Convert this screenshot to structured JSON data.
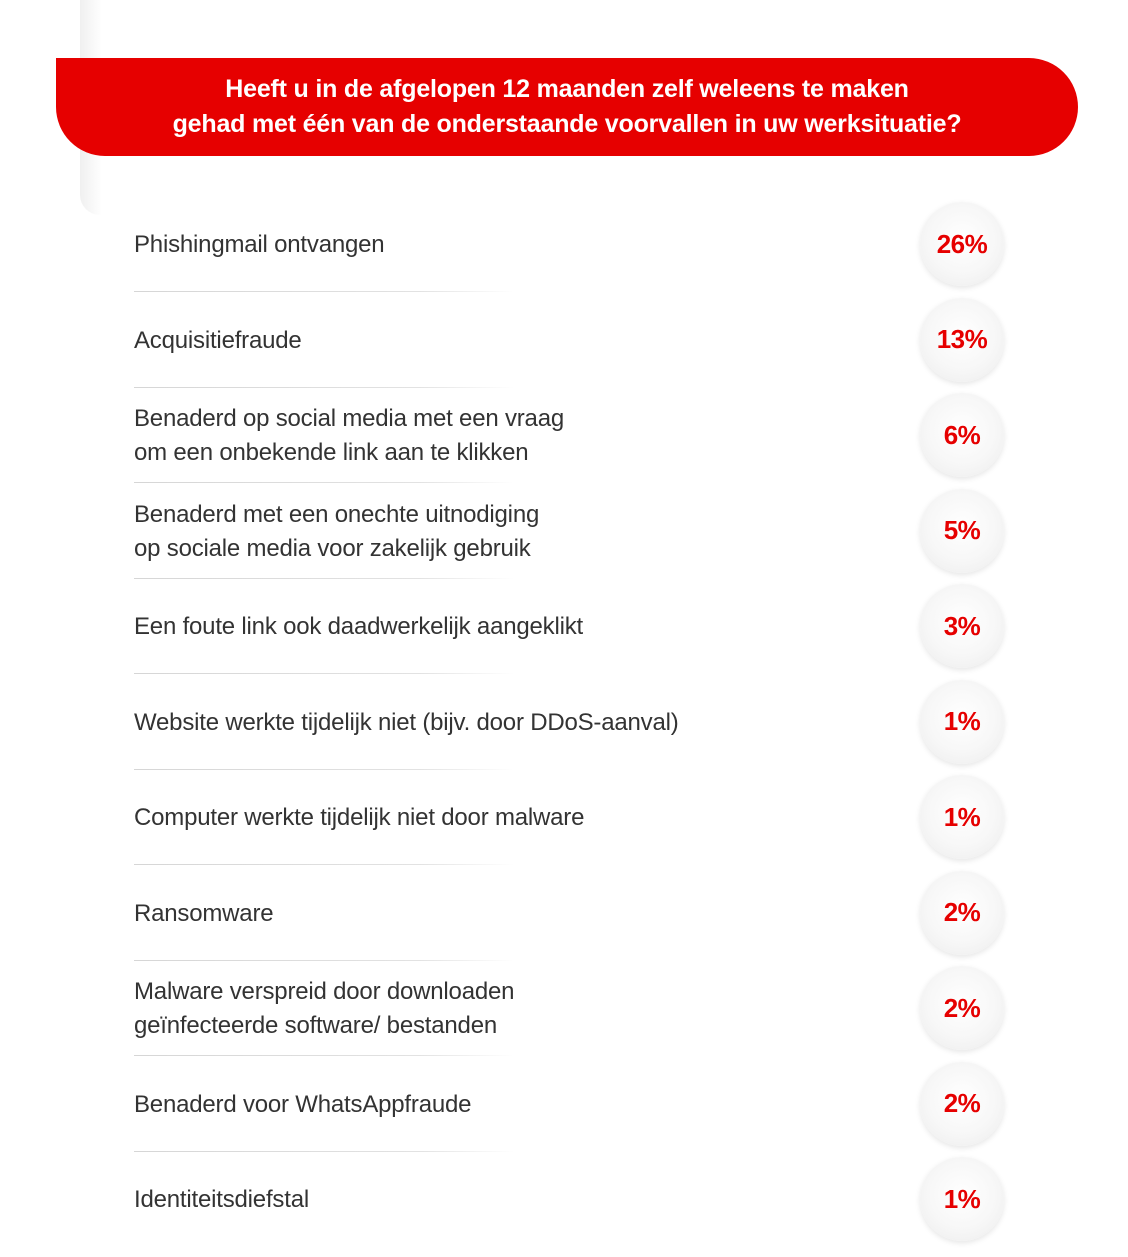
{
  "chart_data": {
    "type": "table",
    "title": "Heeft u in de afgelopen 12 maanden zelf weleens te maken\ngehad met één van de onderstaande voorvallen in uw werksituatie?",
    "unit": "%",
    "categories": [
      "Phishingmail ontvangen",
      "Acquisitiefraude",
      "Benaderd op social media met een vraag\nom een onbekende link aan te klikken",
      "Benaderd met een onechte uitnodiging\nop sociale media voor zakelijk gebruik",
      "Een foute link ook daadwerkelijk aangeklikt",
      "Website werkte tijdelijk niet (bijv. door DDoS-aanval)",
      "Computer werkte tijdelijk niet door malware",
      "Ransomware",
      "Malware verspreid door downloaden\ngeïnfecteerde software/ bestanden",
      "Benaderd voor WhatsAppfraude",
      "Identiteitsdiefstal"
    ],
    "values": [
      26,
      13,
      6,
      5,
      3,
      1,
      1,
      2,
      2,
      2,
      1
    ]
  },
  "colors": {
    "accent": "#e60000",
    "text": "#333333",
    "badge": "#f4f4f4"
  }
}
